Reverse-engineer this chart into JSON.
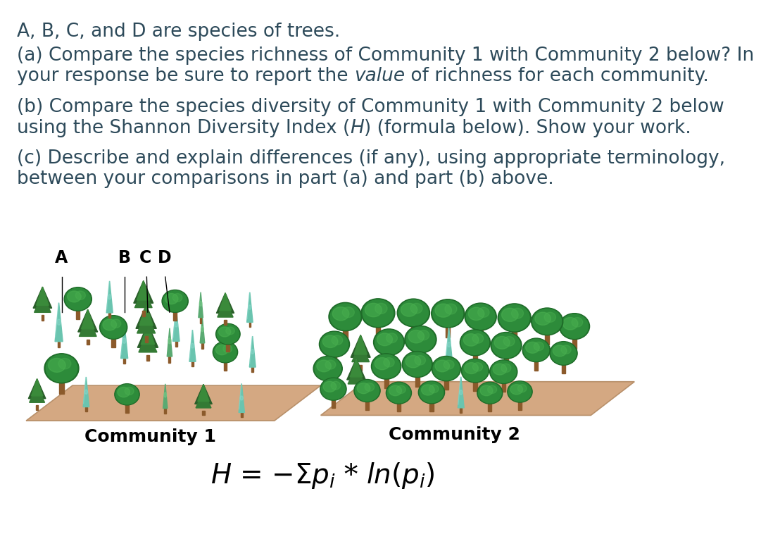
{
  "background_color": "#ffffff",
  "text_color": "#2d4a5a",
  "line1": "A, B, C, and D are species of trees.",
  "line2a": "(a) Compare the species richness of Community 1 with Community 2 below? In",
  "line2b_pre": "your response be sure to report the ",
  "line2b_italic": "value",
  "line2b_post": " of richness for each community.",
  "line3a": "(b) Compare the species diversity of Community 1 with Community 2 below",
  "line3b_pre": "using the Shannon Diversity Index (",
  "line3b_italic": "H",
  "line3b_post": ") (formula below). Show your work.",
  "line4a": "(c) Describe and explain differences (if any), using appropriate terminology,",
  "line4b": "between your comparisons in part (a) and part (b) above.",
  "community1_label": "Community 1",
  "community2_label": "Community 2",
  "ground_color": "#d4a882",
  "ground_edge_color": "#b8906a",
  "trunk_color": "#8B5A2B",
  "tree_A_color": "#2d8b3a",
  "tree_A_hi": "#4ab050",
  "tree_B_color": "#7dcbb8",
  "tree_B_hi": "#a0ddd0",
  "tree_C_color": "#3a7a3a",
  "tree_C_dark": "#2a5a2a",
  "tree_D_color": "#4a9a4a",
  "font_size_main": 19,
  "font_size_label": 16,
  "formula_fontsize": 28
}
